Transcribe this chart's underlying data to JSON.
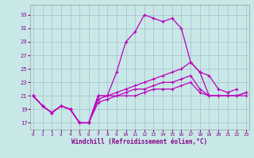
{
  "background_color": "#c8e8e8",
  "grid_color": "#aabbcc",
  "line_color": "#bb00bb",
  "xlabel": "Windchill (Refroidissement éolien,°C)",
  "x_ticks": [
    0,
    1,
    2,
    3,
    4,
    5,
    6,
    7,
    8,
    9,
    10,
    11,
    12,
    13,
    14,
    15,
    16,
    17,
    18,
    19,
    20,
    21,
    22,
    23
  ],
  "y_ticks": [
    17,
    19,
    21,
    23,
    25,
    27,
    29,
    31,
    33
  ],
  "ylim": [
    16.0,
    34.5
  ],
  "xlim": [
    -0.3,
    23.3
  ],
  "lines": [
    {
      "x": [
        0,
        1,
        2,
        3,
        4,
        5,
        6,
        7,
        8,
        9,
        10,
        11,
        12,
        13,
        14,
        15,
        16,
        17,
        18,
        19,
        20,
        21,
        22
      ],
      "y": [
        21,
        19.5,
        18.5,
        19.5,
        19,
        17,
        17,
        21,
        21,
        24.5,
        29,
        30.5,
        33,
        32.5,
        32,
        32.5,
        31,
        26,
        24.5,
        24,
        22,
        21.5,
        22
      ],
      "marker": true
    },
    {
      "x": [
        0,
        1,
        2,
        3,
        4,
        5,
        6,
        7,
        8,
        9,
        10,
        11,
        12,
        13,
        14,
        15,
        16,
        17,
        18,
        19,
        20,
        21,
        22,
        23
      ],
      "y": [
        21,
        19.5,
        18.5,
        19.5,
        19,
        17,
        17,
        21,
        21,
        21.5,
        22,
        22.5,
        23,
        23.5,
        24,
        24.5,
        25,
        26,
        24.5,
        21,
        21,
        21,
        21,
        21.5
      ],
      "marker": false
    },
    {
      "x": [
        0,
        1,
        2,
        3,
        4,
        5,
        6,
        7,
        8,
        9,
        10,
        11,
        12,
        13,
        14,
        15,
        16,
        17,
        18,
        19,
        20,
        21,
        22,
        23
      ],
      "y": [
        21,
        19.5,
        18.5,
        19.5,
        19,
        17,
        17,
        20.5,
        21,
        21,
        21.5,
        22,
        22,
        22.5,
        23,
        23,
        23.5,
        24,
        22,
        21,
        21,
        21,
        21,
        21.5
      ],
      "marker": false
    },
    {
      "x": [
        0,
        1,
        2,
        3,
        4,
        5,
        6,
        7,
        8,
        9,
        10,
        11,
        12,
        13,
        14,
        15,
        16,
        17,
        18,
        19,
        20,
        21,
        22,
        23
      ],
      "y": [
        21,
        19.5,
        18.5,
        19.5,
        19,
        17,
        17,
        20,
        20.5,
        21,
        21,
        21,
        21.5,
        22,
        22,
        22,
        22.5,
        23,
        21.5,
        21,
        21,
        21,
        21,
        21
      ],
      "marker": false
    }
  ]
}
